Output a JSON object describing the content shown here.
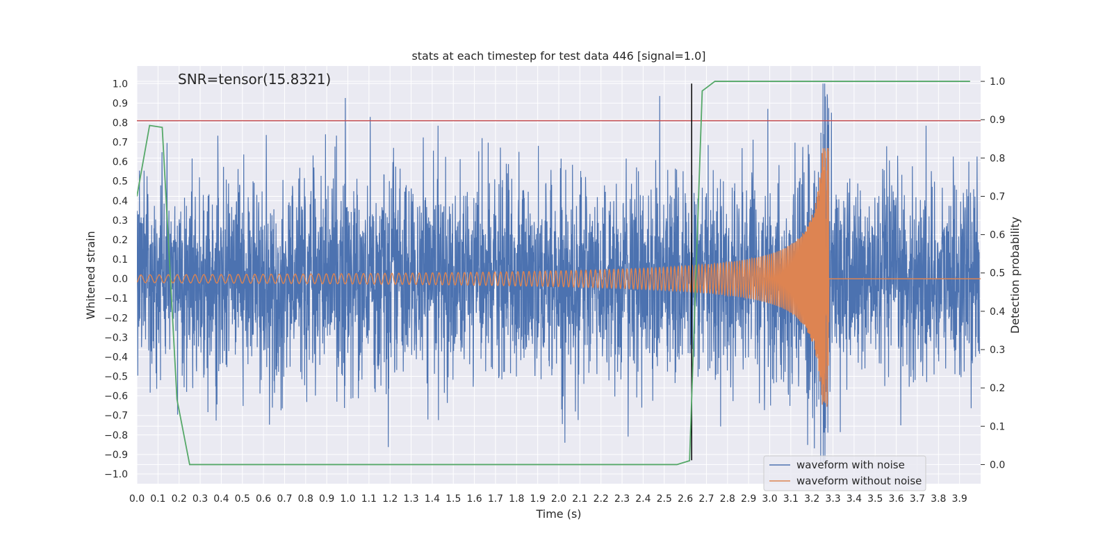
{
  "chart_data": {
    "type": "line",
    "title": "stats at each timestep for test data 446 [signal=1.0]",
    "xlabel": "Time (s)",
    "ylabel": "Whitened strain",
    "y2label": "Detection probability",
    "annotation": "SNR=tensor(15.8321)",
    "xlim": [
      0.0,
      4.0
    ],
    "ylim": [
      -1.05,
      1.09
    ],
    "y2lim": [
      -0.05,
      1.04
    ],
    "x_ticks": [
      "0.0",
      "0.1",
      "0.2",
      "0.3",
      "0.4",
      "0.5",
      "0.6",
      "0.7",
      "0.8",
      "0.9",
      "1.0",
      "1.1",
      "1.2",
      "1.3",
      "1.4",
      "1.5",
      "1.6",
      "1.7",
      "1.8",
      "1.9",
      "2.0",
      "2.1",
      "2.2",
      "2.3",
      "2.4",
      "2.5",
      "2.6",
      "2.7",
      "2.8",
      "2.9",
      "3.0",
      "3.1",
      "3.2",
      "3.3",
      "3.4",
      "3.5",
      "3.6",
      "3.7",
      "3.8",
      "3.9"
    ],
    "y_ticks": [
      "1.0",
      "0.9",
      "0.8",
      "0.7",
      "0.6",
      "0.5",
      "0.4",
      "0.3",
      "0.2",
      "0.1",
      "0.0",
      "−0.1",
      "−0.2",
      "−0.3",
      "−0.4",
      "−0.5",
      "−0.6",
      "−0.7",
      "−0.8",
      "−0.9",
      "−1.0"
    ],
    "y2_ticks": [
      "1.0",
      "0.9",
      "0.8",
      "0.7",
      "0.6",
      "0.5",
      "0.4",
      "0.3",
      "0.2",
      "0.1",
      "0.0"
    ],
    "grid": true,
    "legend_position": "lower-right",
    "threshold": {
      "y": 0.81,
      "color": "#c44e52"
    },
    "event_marker": {
      "x": 2.63,
      "y_from": -0.93,
      "y_to": 1.0,
      "color": "#000000"
    },
    "series": [
      {
        "name": "waveform with noise",
        "color": "#4c72b0",
        "axis": "left",
        "kind": "noise",
        "amplitude_std": 0.25,
        "max": 1.0,
        "min": -0.94
      },
      {
        "name": "waveform without noise",
        "color": "#dd8452",
        "axis": "left",
        "kind": "chirp",
        "t_merger": 3.28,
        "peak": 0.67,
        "min": -0.62
      },
      {
        "name": "Detection probability",
        "color": "#55a868",
        "axis": "right",
        "x": [
          0.0,
          0.06,
          0.12,
          0.19,
          0.25,
          2.56,
          2.62,
          2.68,
          2.74,
          3.95
        ],
        "y": [
          0.7,
          0.885,
          0.88,
          0.17,
          0.0,
          0.0,
          0.01,
          0.975,
          1.0,
          1.0
        ]
      }
    ]
  }
}
